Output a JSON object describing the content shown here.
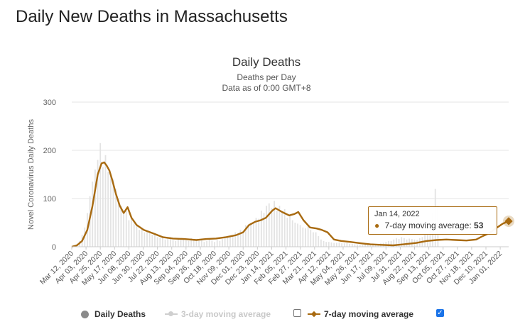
{
  "page": {
    "title": "Daily New Deaths in Massachusetts"
  },
  "tooltip": {
    "date": "Jan 14, 2022",
    "label": "7-day moving average:",
    "value": "53"
  },
  "legend": {
    "daily": "Daily Deaths",
    "avg3": "3-day moving average",
    "avg7": "7-day moving average",
    "avg3_checked": false,
    "avg7_checked": true
  },
  "colors": {
    "bar": "#e3e3e3",
    "avg7": "#a86a10",
    "grid": "#e6e6e6",
    "title": "#333333"
  },
  "chart_data": {
    "type": "bar",
    "title": "Daily Deaths",
    "subtitle": "Deaths per Day",
    "subtitle2": "Data as of 0:00 GMT+8",
    "xlabel": "",
    "ylabel": "Novel Coronavirus Daily Deaths",
    "ylim": [
      0,
      300
    ],
    "yticks": [
      0,
      100,
      200,
      300
    ],
    "grid": true,
    "legend_position": "bottom",
    "x_start_date": "2020-03-12",
    "x_end_date": "2022-01-14",
    "x_ticks": [
      "Mar 12, 2020",
      "Apr 03, 2020",
      "Apr 25, 2020",
      "May 17, 2020",
      "Jun 08, 2020",
      "Jun 30, 2020",
      "Jul 22, 2020",
      "Aug 13, 2020",
      "Sep 04, 2020",
      "Sep 26, 2020",
      "Oct 18, 2020",
      "Nov 09, 2020",
      "Dec 01, 2020",
      "Dec 23, 2020",
      "Jan 14, 2021",
      "Feb 05, 2021",
      "Feb 27, 2021",
      "Mar 21, 2021",
      "Apr 12, 2021",
      "May 04, 2021",
      "May 26, 2021",
      "Jun 17, 2021",
      "Jul 09, 2021",
      "Jul 31, 2021",
      "Aug 22, 2021",
      "Sep 13, 2021",
      "Oct 05, 2021",
      "Oct 27, 2021",
      "Nov 18, 2021",
      "Dec 10, 2021",
      "Jan 01, 2022"
    ],
    "series": [
      {
        "name": "Daily Deaths",
        "kind": "bar",
        "note": "values sampled every 4 days from Mar 12, 2020",
        "step_days": 4,
        "values": [
          0,
          2,
          6,
          12,
          25,
          40,
          70,
          105,
          135,
          160,
          180,
          215,
          165,
          190,
          155,
          150,
          140,
          120,
          100,
          85,
          70,
          75,
          55,
          60,
          48,
          45,
          35,
          38,
          30,
          33,
          28,
          25,
          25,
          20,
          18,
          22,
          15,
          18,
          20,
          14,
          12,
          16,
          14,
          15,
          13,
          12,
          18,
          14,
          16,
          12,
          14,
          10,
          12,
          15,
          13,
          10,
          14,
          12,
          16,
          18,
          20,
          22,
          24,
          30,
          28,
          35,
          32,
          45,
          42,
          50,
          48,
          60,
          58,
          75,
          70,
          85,
          90,
          80,
          95,
          75,
          85,
          70,
          78,
          60,
          65,
          55,
          50,
          48,
          45,
          40,
          38,
          42,
          35,
          30,
          30,
          22,
          15,
          12,
          10,
          10,
          9,
          8,
          8,
          9,
          7,
          7,
          8,
          6,
          6,
          5,
          5,
          4,
          4,
          5,
          5,
          4,
          5,
          5,
          6,
          7,
          8,
          10,
          12,
          12,
          15,
          18,
          16,
          20,
          18,
          15,
          17,
          16,
          15,
          14,
          18,
          20,
          25,
          28,
          35,
          70,
          120,
          85
        ]
      },
      {
        "name": "7-day moving average",
        "kind": "line",
        "points": [
          [
            "2020-03-12",
            0
          ],
          [
            "2020-03-20",
            3
          ],
          [
            "2020-03-28",
            12
          ],
          [
            "2020-04-05",
            35
          ],
          [
            "2020-04-13",
            85
          ],
          [
            "2020-04-21",
            150
          ],
          [
            "2020-04-27",
            173
          ],
          [
            "2020-05-01",
            175
          ],
          [
            "2020-05-05",
            168
          ],
          [
            "2020-05-09",
            158
          ],
          [
            "2020-05-13",
            140
          ],
          [
            "2020-05-19",
            110
          ],
          [
            "2020-05-25",
            85
          ],
          [
            "2020-05-31",
            70
          ],
          [
            "2020-06-06",
            82
          ],
          [
            "2020-06-12",
            60
          ],
          [
            "2020-06-20",
            45
          ],
          [
            "2020-07-01",
            35
          ],
          [
            "2020-07-15",
            28
          ],
          [
            "2020-07-30",
            20
          ],
          [
            "2020-08-15",
            17
          ],
          [
            "2020-09-01",
            16
          ],
          [
            "2020-09-20",
            14
          ],
          [
            "2020-10-05",
            16
          ],
          [
            "2020-10-20",
            17
          ],
          [
            "2020-11-05",
            20
          ],
          [
            "2020-11-20",
            24
          ],
          [
            "2020-12-01",
            30
          ],
          [
            "2020-12-10",
            45
          ],
          [
            "2020-12-20",
            52
          ],
          [
            "2020-12-28",
            55
          ],
          [
            "2021-01-05",
            60
          ],
          [
            "2021-01-15",
            75
          ],
          [
            "2021-01-20",
            80
          ],
          [
            "2021-01-30",
            72
          ],
          [
            "2021-02-10",
            65
          ],
          [
            "2021-02-18",
            68
          ],
          [
            "2021-02-24",
            72
          ],
          [
            "2021-03-04",
            55
          ],
          [
            "2021-03-14",
            40
          ],
          [
            "2021-03-24",
            38
          ],
          [
            "2021-04-01",
            35
          ],
          [
            "2021-04-10",
            30
          ],
          [
            "2021-04-20",
            15
          ],
          [
            "2021-05-01",
            12
          ],
          [
            "2021-05-15",
            10
          ],
          [
            "2021-06-01",
            7
          ],
          [
            "2021-06-15",
            5
          ],
          [
            "2021-07-01",
            4
          ],
          [
            "2021-07-20",
            3
          ],
          [
            "2021-08-05",
            5
          ],
          [
            "2021-08-25",
            8
          ],
          [
            "2021-09-10",
            12
          ],
          [
            "2021-09-25",
            14
          ],
          [
            "2021-10-10",
            15
          ],
          [
            "2021-10-25",
            14
          ],
          [
            "2021-11-10",
            13
          ],
          [
            "2021-11-25",
            15
          ],
          [
            "2021-12-05",
            22
          ],
          [
            "2021-12-15",
            28
          ],
          [
            "2021-12-25",
            38
          ],
          [
            "2022-01-05",
            48
          ],
          [
            "2022-01-14",
            53
          ]
        ]
      }
    ]
  }
}
